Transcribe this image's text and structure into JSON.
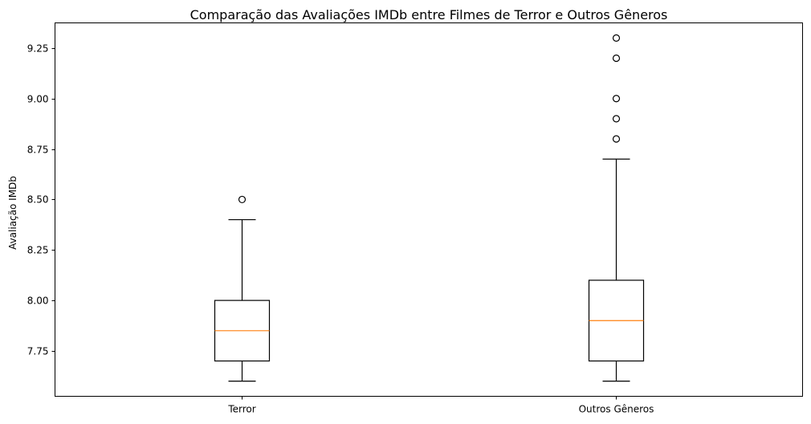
{
  "chart_data": {
    "type": "boxplot",
    "title": "Comparação das Avaliações IMDb entre Filmes de Terror e Outros Gêneros",
    "xlabel": "",
    "ylabel": "Avaliação IMDb",
    "ylim": [
      7.525,
      9.375
    ],
    "yticks": [
      {
        "value": 7.75,
        "label": "7.75"
      },
      {
        "value": 8.0,
        "label": "8.00"
      },
      {
        "value": 8.25,
        "label": "8.25"
      },
      {
        "value": 8.5,
        "label": "8.50"
      },
      {
        "value": 8.75,
        "label": "8.75"
      },
      {
        "value": 9.0,
        "label": "9.00"
      },
      {
        "value": 9.25,
        "label": "9.25"
      }
    ],
    "grid": false,
    "legend": "none",
    "categories": [
      "Terror",
      "Outros Gêneros"
    ],
    "boxes": [
      {
        "category": "Terror",
        "whisker_low": 7.6,
        "q1": 7.7,
        "median": 7.85,
        "q3": 8.0,
        "whisker_high": 8.4,
        "outliers": [
          8.5
        ]
      },
      {
        "category": "Outros Gêneros",
        "whisker_low": 7.6,
        "q1": 7.7,
        "median": 7.9,
        "q3": 8.1,
        "whisker_high": 8.7,
        "outliers": [
          8.8,
          8.9,
          9.0,
          9.2,
          9.3
        ]
      }
    ],
    "colors": {
      "box": "#000000",
      "median": "#ff7f0e",
      "outlier": "#000000"
    }
  }
}
